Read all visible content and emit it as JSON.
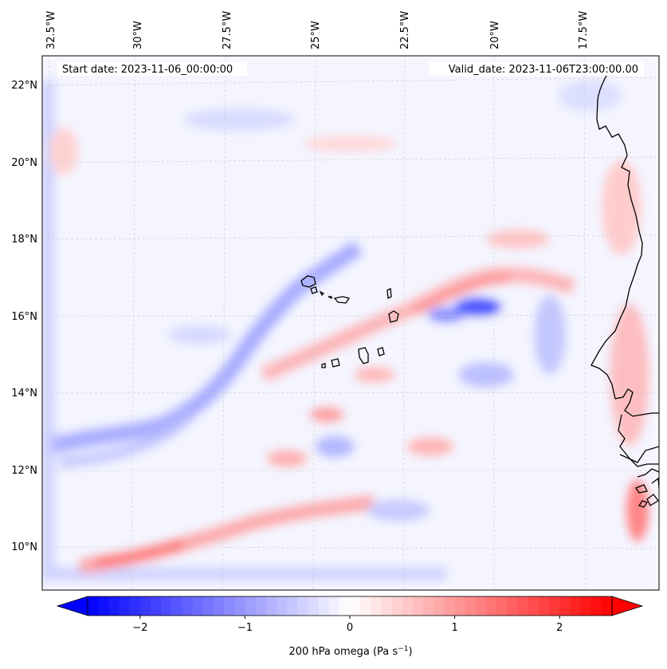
{
  "map": {
    "start_label": "Start date: 2023-11-06_00:00:00",
    "valid_label": "Valid_date: 2023-11-06T23:00:00.00",
    "lon_ticks": [
      "32.5°W",
      "30°W",
      "27.5°W",
      "25°W",
      "22.5°W",
      "20°W",
      "17.5°W"
    ],
    "lat_ticks": [
      "22°N",
      "20°N",
      "18°N",
      "16°N",
      "14°N",
      "12°N",
      "10°N"
    ],
    "land_color": "#000000"
  },
  "colorbar": {
    "title_main": "200 hPa omega (Pa s",
    "title_exp": "−1",
    "title_close": ")",
    "ticks": [
      "−2",
      "−1",
      "0",
      "1",
      "2"
    ],
    "tick_values": [
      -2,
      -1,
      0,
      1,
      2
    ],
    "min": -2.5,
    "max": 2.5,
    "neg_color": "#0000ff",
    "zero_color": "#ffffff",
    "pos_color": "#ff0000"
  }
}
